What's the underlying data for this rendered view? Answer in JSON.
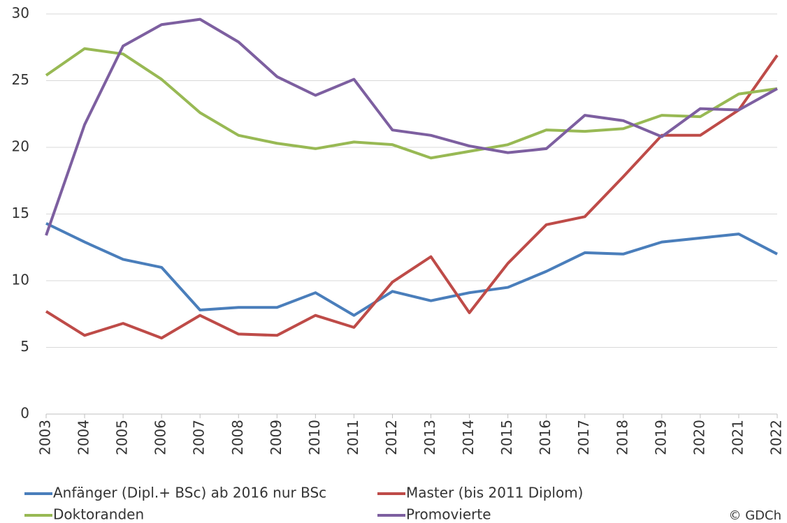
{
  "chart_data": {
    "type": "line",
    "x": [
      2003,
      2004,
      2005,
      2006,
      2007,
      2008,
      2009,
      2010,
      2011,
      2012,
      2013,
      2014,
      2015,
      2016,
      2017,
      2018,
      2019,
      2020,
      2021,
      2022
    ],
    "xlim": [
      2003,
      2022
    ],
    "xticks": [
      2003,
      2004,
      2005,
      2006,
      2007,
      2008,
      2009,
      2010,
      2011,
      2012,
      2013,
      2014,
      2015,
      2016,
      2017,
      2018,
      2019,
      2020,
      2021,
      2022
    ],
    "ylim": [
      0,
      30
    ],
    "yticks": [
      0,
      5,
      10,
      15,
      20,
      25,
      30
    ],
    "grid": true,
    "legend": "bottom",
    "series": [
      {
        "name": "Anfänger (Dipl.+ BSc) ab 2016 nur BSc",
        "color": "#4a7ebb",
        "values": [
          14.3,
          12.9,
          11.6,
          11.0,
          7.8,
          8.0,
          8.0,
          9.1,
          7.4,
          9.2,
          8.5,
          9.1,
          9.5,
          10.7,
          12.1,
          12.0,
          12.9,
          13.2,
          13.5,
          12.0
        ]
      },
      {
        "name": "Master (bis 2011 Diplom)",
        "color": "#be4b48",
        "values": [
          7.7,
          5.9,
          6.8,
          5.7,
          7.4,
          6.0,
          5.9,
          7.4,
          6.5,
          9.9,
          11.8,
          7.6,
          11.3,
          14.2,
          14.8,
          17.8,
          20.9,
          20.9,
          22.8,
          26.9
        ]
      },
      {
        "name": "Doktoranden",
        "color": "#98b954",
        "values": [
          25.4,
          27.4,
          27.0,
          25.1,
          22.6,
          20.9,
          20.3,
          19.9,
          20.4,
          20.2,
          19.2,
          19.7,
          20.2,
          21.3,
          21.2,
          21.4,
          22.4,
          22.3,
          24.0,
          24.4
        ]
      },
      {
        "name": "Promovierte",
        "color": "#7d5fa0",
        "values": [
          13.4,
          21.7,
          27.6,
          29.2,
          29.6,
          27.9,
          25.3,
          23.9,
          25.1,
          21.3,
          20.9,
          20.1,
          19.6,
          19.9,
          22.4,
          22.0,
          20.8,
          22.9,
          22.8,
          24.4
        ]
      }
    ],
    "annotations": [
      "© GDCh"
    ]
  }
}
